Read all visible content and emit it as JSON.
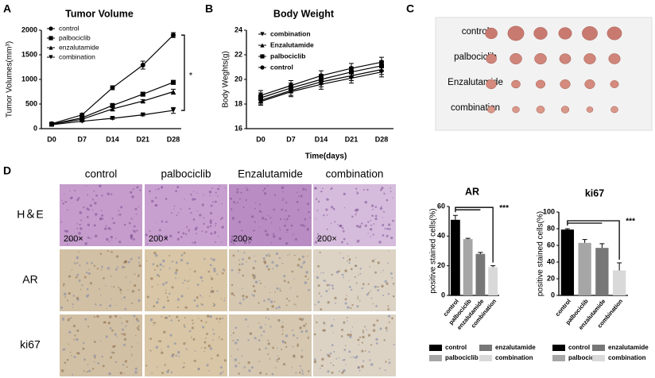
{
  "panel_labels": [
    "A",
    "B",
    "C",
    "D"
  ],
  "photo": {
    "labels": [
      "control",
      "palbociclib",
      "Enzalutamide",
      "combination"
    ]
  },
  "histology": {
    "columns": [
      "control",
      "palbociclib",
      "Enzalutamide",
      "combination"
    ],
    "rows": [
      "H＆E",
      "AR",
      "ki67"
    ],
    "magnification": "200×"
  },
  "chart_data": [
    {
      "type": "line",
      "title": "Tumor Volume",
      "y_label": "Tumor Volumes(mm³)",
      "annotation": "*",
      "categories": [
        "D0",
        "D7",
        "D14",
        "D21",
        "D28"
      ],
      "series": [
        {
          "name": "control",
          "marker": "circle",
          "color": "#000000",
          "values": [
            100,
            280,
            830,
            1290,
            1900
          ],
          "errors": [
            20,
            30,
            40,
            80,
            50
          ]
        },
        {
          "name": "palbociclib",
          "marker": "square",
          "color": "#000000",
          "values": [
            90,
            220,
            470,
            700,
            940
          ],
          "errors": [
            15,
            25,
            40,
            40,
            40
          ]
        },
        {
          "name": "enzalutamide",
          "marker": "triangle-up",
          "color": "#000000",
          "values": [
            90,
            190,
            400,
            560,
            750
          ],
          "errors": [
            15,
            20,
            30,
            30,
            50
          ]
        },
        {
          "name": "combination",
          "marker": "triangle-down",
          "color": "#000000",
          "values": [
            80,
            150,
            210,
            280,
            370
          ],
          "errors": [
            10,
            15,
            20,
            20,
            60
          ]
        }
      ],
      "ylim": [
        0,
        2000
      ],
      "yticks": [
        0,
        500,
        1000,
        1500,
        2000
      ]
    },
    {
      "type": "line",
      "title": "Body Weight",
      "x_label": "Time(days)",
      "y_label": "Body Weghts(g)",
      "categories": [
        "D0",
        "D7",
        "D14",
        "D21",
        "D28"
      ],
      "series": [
        {
          "name": "combination",
          "marker": "triangle-down",
          "color": "#000000",
          "values": [
            18.2,
            19.0,
            19.6,
            20.1,
            20.6
          ],
          "errors": [
            0.3,
            0.4,
            0.4,
            0.4,
            0.4
          ]
        },
        {
          "name": "Enzalutamide",
          "marker": "triangle-up",
          "color": "#000000",
          "values": [
            18.3,
            19.1,
            19.8,
            20.3,
            20.8
          ],
          "errors": [
            0.3,
            0.4,
            0.4,
            0.4,
            0.4
          ]
        },
        {
          "name": "palbociclib",
          "marker": "square",
          "color": "#000000",
          "values": [
            18.5,
            19.3,
            20.0,
            20.6,
            21.1
          ],
          "errors": [
            0.4,
            0.4,
            0.4,
            0.4,
            0.4
          ]
        },
        {
          "name": "control",
          "marker": "circle",
          "color": "#000000",
          "values": [
            18.7,
            19.5,
            20.3,
            20.9,
            21.4
          ],
          "errors": [
            0.4,
            0.4,
            0.4,
            0.4,
            0.4
          ]
        }
      ],
      "ylim": [
        16,
        24
      ],
      "yticks": [
        16,
        18,
        20,
        22,
        24
      ]
    },
    {
      "type": "bar",
      "title": "AR",
      "y_label": "positive stained cells(%)",
      "annotation": "***",
      "categories": [
        "control",
        "palbociclib",
        "enzalutamide",
        "combination"
      ],
      "values": [
        51,
        38,
        28,
        19
      ],
      "errors": [
        3,
        0.5,
        1,
        1
      ],
      "colors": [
        "#000000",
        "#a6a6a6",
        "#777777",
        "#d9d9d9"
      ],
      "ylim": [
        0,
        60
      ],
      "yticks": [
        0,
        20,
        40,
        60
      ]
    },
    {
      "type": "bar",
      "title": "ki67",
      "y_label": "positive stained cells(%)",
      "annotation": "***",
      "categories": [
        "control",
        "palbociclib",
        "enzalutamide",
        "combination"
      ],
      "values": [
        79,
        63,
        57,
        30
      ],
      "errors": [
        1,
        4,
        5,
        9
      ],
      "colors": [
        "#000000",
        "#a6a6a6",
        "#777777",
        "#d9d9d9"
      ],
      "ylim": [
        0,
        100
      ],
      "yticks": [
        0,
        20,
        40,
        60,
        80,
        100
      ]
    }
  ]
}
